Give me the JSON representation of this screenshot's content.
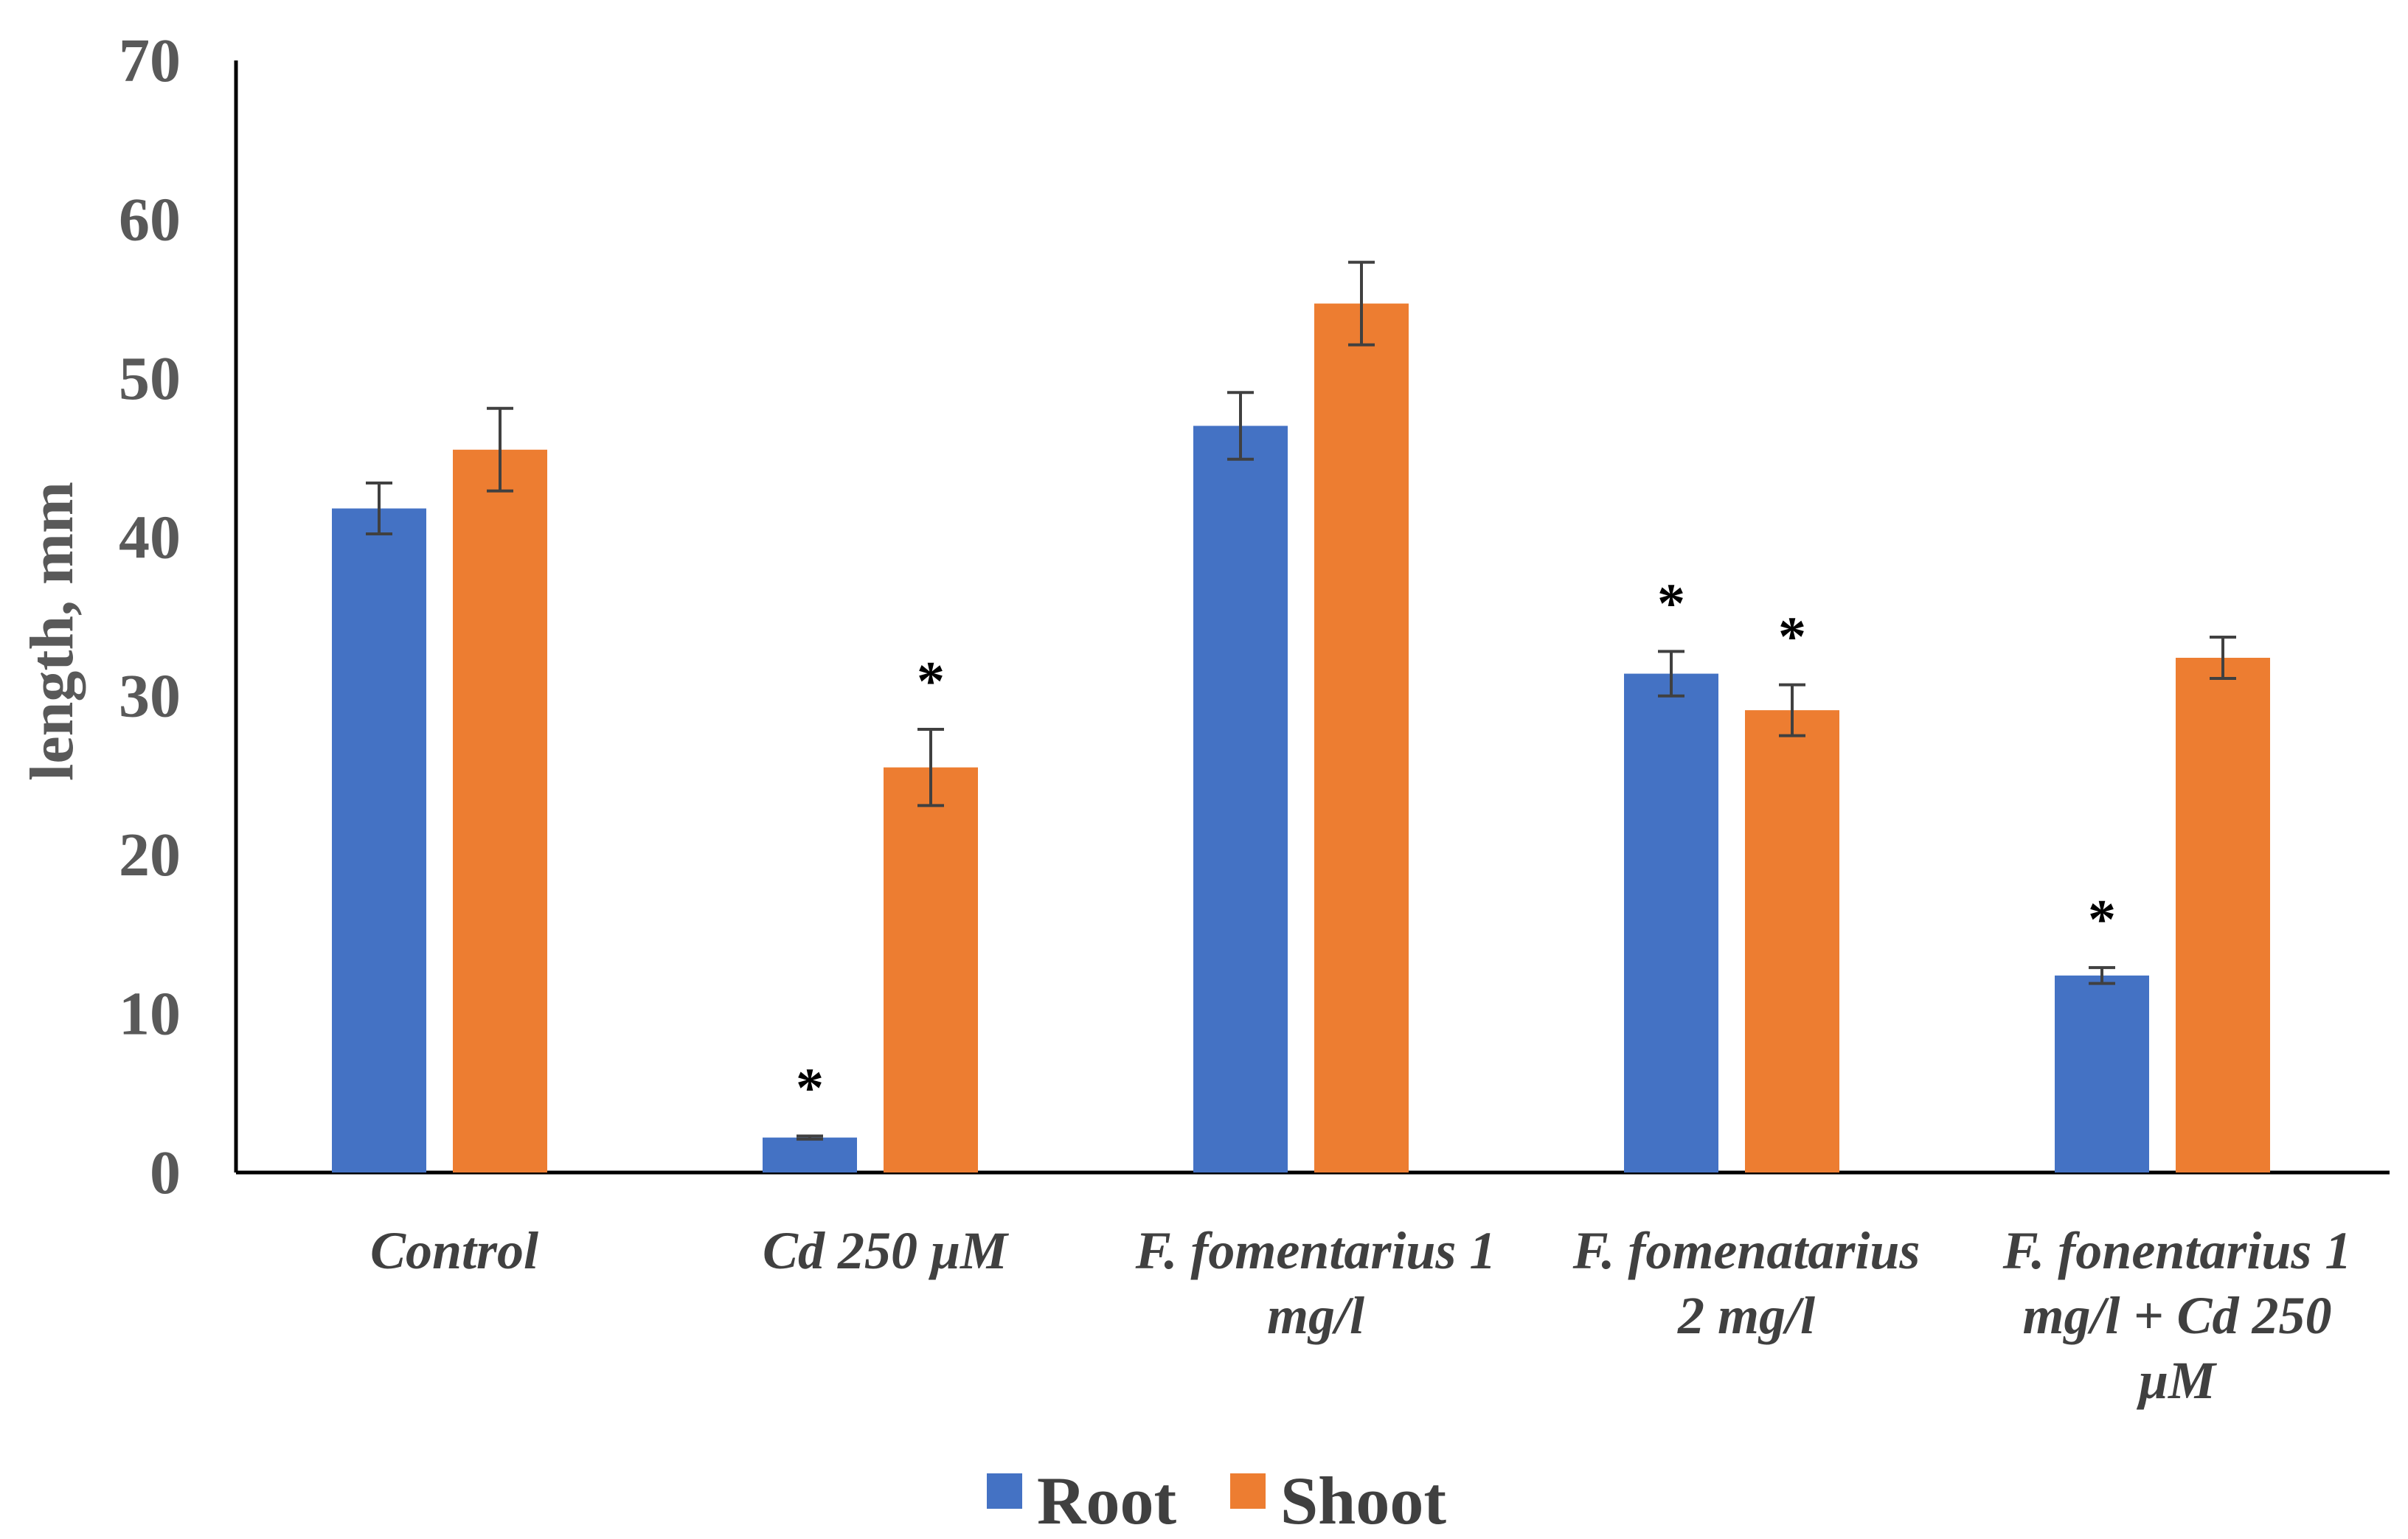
{
  "chart_data": {
    "type": "bar",
    "ylabel": "length, mm",
    "ylim": [
      0,
      70
    ],
    "yticks": [
      0,
      10,
      20,
      30,
      40,
      50,
      60,
      70
    ],
    "categories": [
      [
        "Control"
      ],
      [
        "Cd 250 μM"
      ],
      [
        "F. fomentarius 1",
        "mg/l"
      ],
      [
        "F. fomenatarius",
        "2 mg/l"
      ],
      [
        "F. fonentarius 1",
        "mg/l + Cd 250",
        "μM"
      ]
    ],
    "series": [
      {
        "name": "Root",
        "color": "#4472C4",
        "values": [
          41.8,
          2.2,
          47.0,
          31.4,
          12.4
        ],
        "errors": [
          1.6,
          0.1,
          2.1,
          1.4,
          0.5
        ],
        "significant": [
          false,
          true,
          false,
          true,
          true
        ]
      },
      {
        "name": "Shoot",
        "color": "#ED7D31",
        "values": [
          45.5,
          25.5,
          54.7,
          29.1,
          32.4
        ],
        "errors": [
          2.6,
          2.4,
          2.6,
          1.6,
          1.3
        ],
        "significant": [
          false,
          true,
          false,
          true,
          false
        ]
      }
    ],
    "significance_marker": "*",
    "legend_position": "bottom",
    "grid": false
  }
}
